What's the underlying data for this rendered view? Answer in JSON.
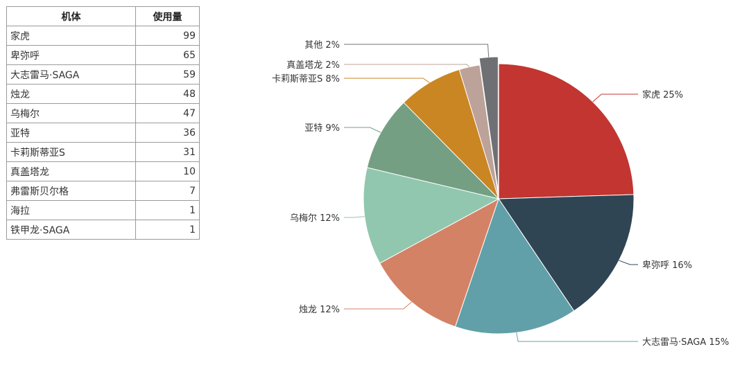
{
  "table": {
    "headers": [
      "机体",
      "使用量"
    ],
    "rows": [
      [
        "家虎",
        "99"
      ],
      [
        "卑弥呼",
        "65"
      ],
      [
        "大志雷马·SAGA",
        "59"
      ],
      [
        "烛龙",
        "48"
      ],
      [
        "乌梅尔",
        "47"
      ],
      [
        "亚特",
        "36"
      ],
      [
        "卡莉斯蒂亚S",
        "31"
      ],
      [
        "真盖塔龙",
        "10"
      ],
      [
        "弗雷斯贝尔格",
        "7"
      ],
      [
        "海拉",
        "1"
      ],
      [
        "铁甲龙·SAGA",
        "1"
      ]
    ]
  },
  "chart_data": {
    "type": "pie",
    "title": "",
    "start_angle_deg": 90,
    "direction": "clockwise",
    "slices": [
      {
        "name": "家虎",
        "label": "家虎 25%",
        "value": 99,
        "percent": 25,
        "color": "#c23531"
      },
      {
        "name": "卑弥呼",
        "label": "卑弥呼 16%",
        "value": 65,
        "percent": 16,
        "color": "#2f4554"
      },
      {
        "name": "大志雷马·SAGA",
        "label": "大志雷马·SAGA 15%",
        "value": 59,
        "percent": 15,
        "color": "#61a0a8"
      },
      {
        "name": "烛龙",
        "label": "烛龙 12%",
        "value": 48,
        "percent": 12,
        "color": "#d48265"
      },
      {
        "name": "乌梅尔",
        "label": "乌梅尔 12%",
        "value": 47,
        "percent": 12,
        "color": "#91c7ae"
      },
      {
        "name": "亚特",
        "label": "亚特 9%",
        "value": 36,
        "percent": 9,
        "color": "#749f83"
      },
      {
        "name": "卡莉斯蒂亚S",
        "label": "卡莉斯蒂亚S 8%",
        "value": 31,
        "percent": 8,
        "color": "#ca8622"
      },
      {
        "name": "真盖塔龙",
        "label": "真盖塔龙 2%",
        "value": 10,
        "percent": 2,
        "color": "#bda29a"
      },
      {
        "name": "其他",
        "label": "其他 2%",
        "value": 9,
        "percent": 2,
        "color": "#6e7074"
      }
    ]
  }
}
